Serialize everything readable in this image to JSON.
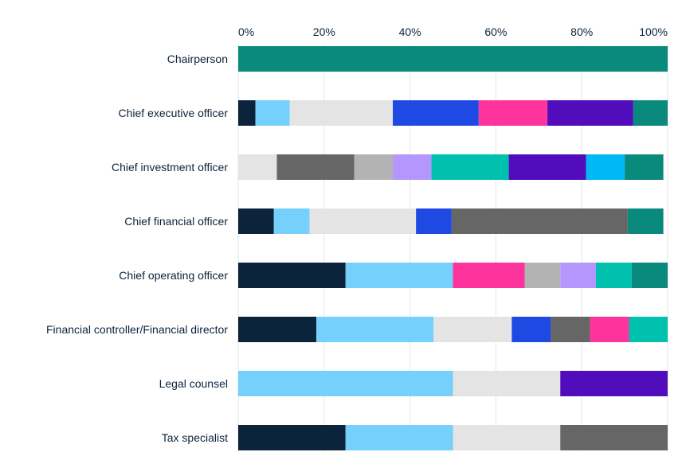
{
  "chart_data": {
    "type": "bar",
    "orientation": "horizontal",
    "stacked": true,
    "categories": [
      "Chairperson",
      "Chief executive officer",
      "Chief investment officer",
      "Chief financial officer",
      "Chief operating officer",
      "Financial controller/Financial director",
      "Legal counsel",
      "Tax specialist"
    ],
    "x_ticks": [
      "0%",
      "20%",
      "40%",
      "60%",
      "80%",
      "100%"
    ],
    "xlim": [
      0,
      100
    ],
    "grid": true,
    "rows": [
      [
        {
          "value": 100,
          "color": "#0a8a7c"
        }
      ],
      [
        {
          "value": 4,
          "color": "#0c233c"
        },
        {
          "value": 8,
          "color": "#76d0fc"
        },
        {
          "value": 24,
          "color": "#e4e4e4"
        },
        {
          "value": 20,
          "color": "#1e49e2"
        },
        {
          "value": 16,
          "color": "#fd349c"
        },
        {
          "value": 20,
          "color": "#510dbc"
        },
        {
          "value": 8,
          "color": "#0a8a7c"
        }
      ],
      [
        {
          "value": 9,
          "color": "#e4e4e4"
        },
        {
          "value": 18,
          "color": "#666666"
        },
        {
          "value": 9,
          "color": "#b3b3b3"
        },
        {
          "value": 9,
          "color": "#b497fc"
        },
        {
          "value": 18,
          "color": "#00c0ae"
        },
        {
          "value": 18,
          "color": "#510dbc"
        },
        {
          "value": 9,
          "color": "#00b8f5"
        },
        {
          "value": 9,
          "color": "#0a8a7c"
        }
      ],
      [
        {
          "value": 8.3,
          "color": "#0c233c"
        },
        {
          "value": 8.3,
          "color": "#76d0fc"
        },
        {
          "value": 24.8,
          "color": "#e4e4e4"
        },
        {
          "value": 8.3,
          "color": "#1e49e2"
        },
        {
          "value": 41,
          "color": "#666666"
        },
        {
          "value": 8.3,
          "color": "#0a8a7c"
        }
      ],
      [
        {
          "value": 25,
          "color": "#0c233c"
        },
        {
          "value": 25,
          "color": "#76d0fc"
        },
        {
          "value": 16.7,
          "color": "#fd349c"
        },
        {
          "value": 8.3,
          "color": "#b3b3b3"
        },
        {
          "value": 8.3,
          "color": "#b497fc"
        },
        {
          "value": 8.3,
          "color": "#00c0ae"
        },
        {
          "value": 8.4,
          "color": "#0a8a7c"
        }
      ],
      [
        {
          "value": 18.2,
          "color": "#0c233c"
        },
        {
          "value": 27.3,
          "color": "#76d0fc"
        },
        {
          "value": 18.2,
          "color": "#e4e4e4"
        },
        {
          "value": 9.1,
          "color": "#1e49e2"
        },
        {
          "value": 9.1,
          "color": "#666666"
        },
        {
          "value": 9.1,
          "color": "#fd349c"
        },
        {
          "value": 9,
          "color": "#00c0ae"
        }
      ],
      [
        {
          "value": 50,
          "color": "#76d0fc"
        },
        {
          "value": 25,
          "color": "#e4e4e4"
        },
        {
          "value": 25,
          "color": "#510dbc"
        }
      ],
      [
        {
          "value": 25,
          "color": "#0c233c"
        },
        {
          "value": 25,
          "color": "#76d0fc"
        },
        {
          "value": 25,
          "color": "#e4e4e4"
        },
        {
          "value": 25,
          "color": "#666666"
        }
      ]
    ]
  }
}
